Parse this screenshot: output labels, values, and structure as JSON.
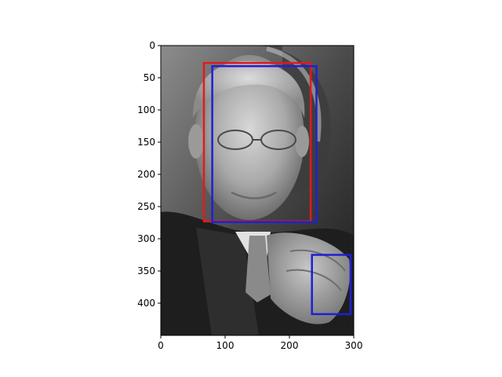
{
  "chart_data": {
    "type": "image",
    "image_description": "grayscale photo",
    "image_width": 300,
    "image_height": 450,
    "xlim": [
      0,
      300
    ],
    "ylim": [
      450,
      0
    ],
    "x_ticks": [
      0,
      100,
      200,
      300
    ],
    "y_ticks": [
      0,
      50,
      100,
      150,
      200,
      250,
      300,
      350,
      400
    ],
    "grid": false,
    "title": "",
    "xlabel": "",
    "ylabel": "",
    "rectangles": [
      {
        "x": 67,
        "y": 27,
        "width": 166,
        "height": 246,
        "color": "#e31a1c"
      },
      {
        "x": 80,
        "y": 32,
        "width": 162,
        "height": 242,
        "color": "#1f1fd6"
      },
      {
        "x": 235,
        "y": 325,
        "width": 60,
        "height": 92,
        "color": "#1f1fd6"
      }
    ]
  }
}
